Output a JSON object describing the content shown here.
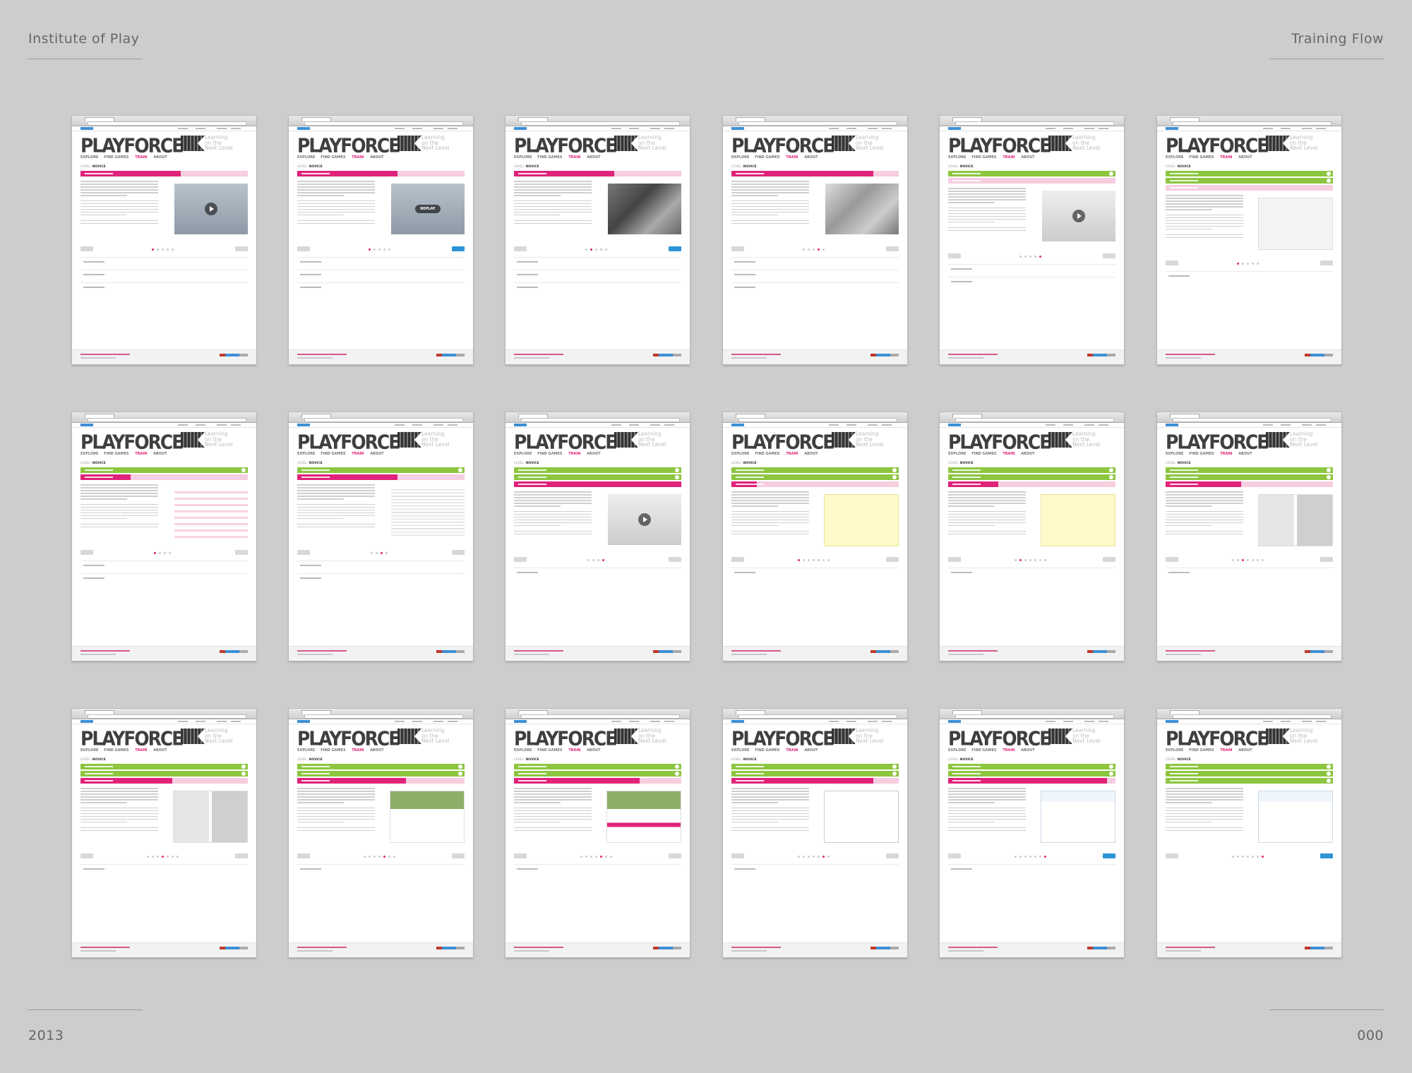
{
  "header": {
    "left_title": "Institute of Play",
    "right_title": "Training Flow"
  },
  "footer": {
    "year": "2013",
    "page_number": "000"
  },
  "screen_template": {
    "brand": "PLAYFORCE",
    "tagline_lines": [
      "Learning",
      "on the",
      "Next Level"
    ],
    "nav": [
      "EXPLORE",
      "FIND GAMES",
      "TRAIN",
      "ABOUT"
    ],
    "active_nav": "TRAIN",
    "level_label": "LEVEL:",
    "level_value": "NOVICE",
    "play_icon": "play-icon",
    "replay_label": "REPLAY",
    "colors": {
      "accent": "#e0237a",
      "complete": "#8cc63f",
      "progress_bg": "#f7cde0",
      "link": "#2e94d6"
    }
  },
  "screens": [
    {
      "green": 0,
      "progress": 0.6,
      "media": "video",
      "dots": [
        5,
        0
      ],
      "btn_blue": false,
      "subs": 3
    },
    {
      "green": 0,
      "progress": 0.6,
      "media": "replay",
      "dots": [
        5,
        0
      ],
      "btn_blue": true,
      "subs": 3
    },
    {
      "green": 0,
      "progress": 0.6,
      "media": "photo-bw",
      "dots": [
        5,
        1
      ],
      "btn_blue": true,
      "subs": 3
    },
    {
      "green": 0,
      "progress": 0.85,
      "media": "photo",
      "dots": [
        5,
        3
      ],
      "btn_blue": false,
      "subs": 3
    },
    {
      "green": 1,
      "progress": 0.0,
      "media": "video-light",
      "dots": [
        5,
        4
      ],
      "btn_blue": false,
      "subs": 2
    },
    {
      "green": 2,
      "progress": 0.0,
      "media": "panel",
      "dots": [
        5,
        0
      ],
      "btn_blue": false,
      "subs": 1
    },
    {
      "green": 1,
      "progress": 0.3,
      "media": "pink-list",
      "dots": [
        4,
        0
      ],
      "btn_blue": false,
      "subs": 2
    },
    {
      "green": 1,
      "progress": 0.6,
      "media": "text",
      "dots": [
        4,
        2
      ],
      "btn_blue": false,
      "subs": 2
    },
    {
      "green": 2,
      "progress": 1.0,
      "media": "video-light",
      "dots": [
        4,
        3
      ],
      "btn_blue": false,
      "subs": 1
    },
    {
      "green": 2,
      "progress": 0.15,
      "media": "note",
      "dots": [
        7,
        0
      ],
      "btn_blue": false,
      "subs": 1
    },
    {
      "green": 2,
      "progress": 0.3,
      "media": "note",
      "dots": [
        7,
        1
      ],
      "btn_blue": false,
      "subs": 1
    },
    {
      "green": 2,
      "progress": 0.45,
      "media": "tiles",
      "dots": [
        7,
        2
      ],
      "btn_blue": false,
      "subs": 1
    },
    {
      "green": 2,
      "progress": 0.55,
      "media": "tiles",
      "dots": [
        7,
        3
      ],
      "btn_blue": false,
      "subs": 1
    },
    {
      "green": 2,
      "progress": 0.65,
      "media": "form",
      "dots": [
        7,
        4
      ],
      "btn_blue": false,
      "subs": 1
    },
    {
      "green": 2,
      "progress": 0.75,
      "media": "form-tags",
      "dots": [
        7,
        4
      ],
      "btn_blue": false,
      "subs": 1
    },
    {
      "green": 2,
      "progress": 0.85,
      "media": "textbox",
      "dots": [
        7,
        5
      ],
      "btn_blue": false,
      "subs": 1
    },
    {
      "green": 2,
      "progress": 0.95,
      "media": "card",
      "dots": [
        7,
        6
      ],
      "btn_blue": true,
      "subs": 1
    },
    {
      "green": 3,
      "progress": 0.0,
      "media": "card",
      "dots": [
        7,
        6
      ],
      "btn_blue": true,
      "subs": 0
    }
  ]
}
